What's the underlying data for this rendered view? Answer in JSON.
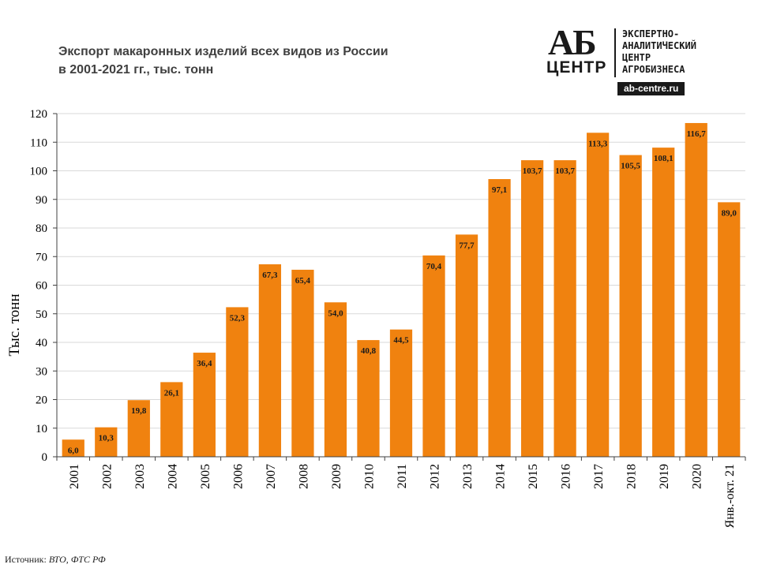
{
  "title_line1": "Экспорт макаронных изделий всех видов из России",
  "title_line2": "в 2001-2021 гг., тыс. тонн",
  "logo": {
    "mark_top": "АБ",
    "mark_bottom": "ЦЕНТР",
    "line1": "ЭКСПЕРТНО-",
    "line2": "АНАЛИТИЧЕСКИЙ",
    "line3": "ЦЕНТР",
    "line4": "АГРОБИЗНЕСА",
    "url": "ab-centre.ru"
  },
  "source_label": "Источник:",
  "source_value": "ВТО, ФТС РФ",
  "colors": {
    "bar": "#F0820F",
    "grid": "#d9d9d9",
    "axis": "#404040"
  },
  "chart_data": {
    "type": "bar",
    "categories": [
      "2001",
      "2002",
      "2003",
      "2004",
      "2005",
      "2006",
      "2007",
      "2008",
      "2009",
      "2010",
      "2011",
      "2012",
      "2013",
      "2014",
      "2015",
      "2016",
      "2017",
      "2018",
      "2019",
      "2020",
      "Янв.-окт. 21"
    ],
    "values": [
      6.0,
      10.3,
      19.8,
      26.1,
      36.4,
      52.3,
      67.3,
      65.4,
      54.0,
      40.8,
      44.5,
      70.4,
      77.7,
      97.1,
      103.7,
      103.7,
      113.3,
      105.5,
      108.1,
      116.7,
      89.0
    ],
    "value_labels": [
      "6,0",
      "10,3",
      "19,8",
      "26,1",
      "36,4",
      "52,3",
      "67,3",
      "65,4",
      "54,0",
      "40,8",
      "44,5",
      "70,4",
      "77,7",
      "97,1",
      "103,7",
      "103,7",
      "113,3",
      "105,5",
      "108,1",
      "116,7",
      "89,0"
    ],
    "title": "Экспорт макаронных изделий всех видов из России в 2001-2021 гг., тыс. тонн",
    "xlabel": "",
    "ylabel": "Тыс. тонн",
    "ylim": [
      0,
      120
    ],
    "yticks": [
      0,
      10,
      20,
      30,
      40,
      50,
      60,
      70,
      80,
      90,
      100,
      110,
      120
    ],
    "grid": true,
    "legend": "none"
  }
}
